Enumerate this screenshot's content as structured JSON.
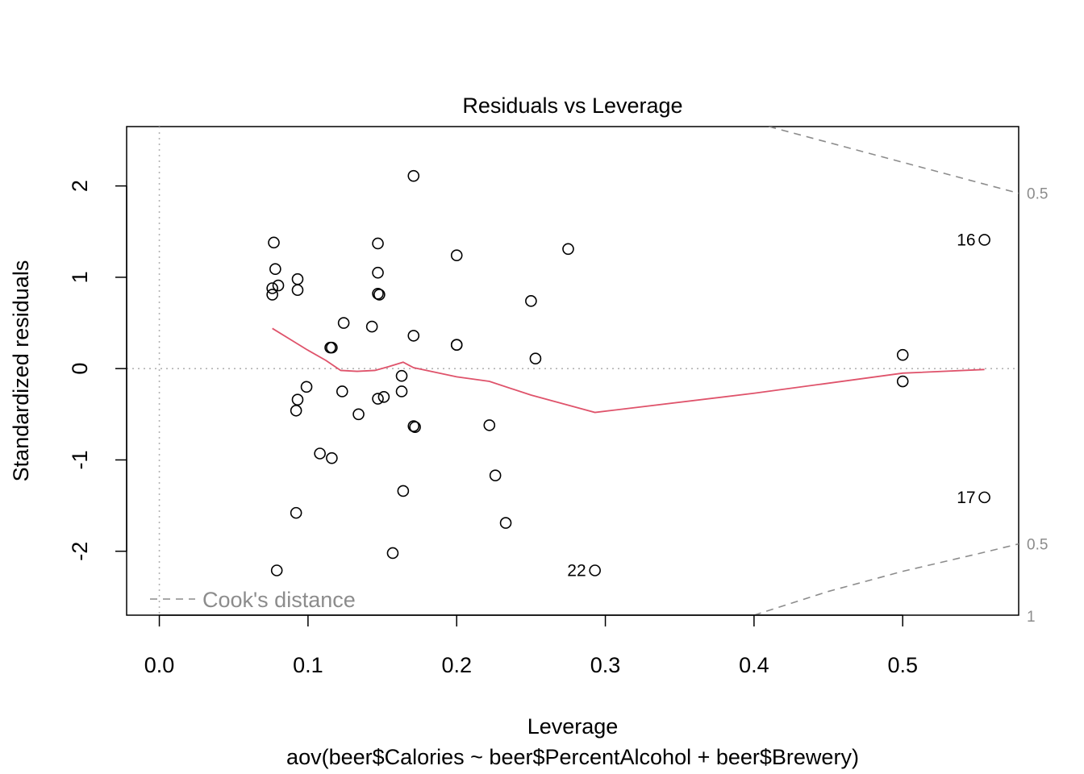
{
  "chart_data": {
    "type": "scatter",
    "title": "Residuals vs Leverage",
    "xlabel": "Leverage",
    "ylabel": "Standardized residuals",
    "subtitle": "aov(beer$Calories ~ beer$PercentAlcohol + beer$Brewery)",
    "xlim": [
      -0.022,
      0.578
    ],
    "ylim": [
      -2.7,
      2.65
    ],
    "x_ticks": [
      "0.0",
      "0.1",
      "0.2",
      "0.3",
      "0.4",
      "0.5"
    ],
    "x_tick_values": [
      0.0,
      0.1,
      0.2,
      0.3,
      0.4,
      0.5
    ],
    "y_ticks": [
      "-2",
      "-1",
      "0",
      "1",
      "2"
    ],
    "y_tick_values": [
      -2,
      -1,
      0,
      1,
      2
    ],
    "points": [
      {
        "x": 0.077,
        "y": 1.38
      },
      {
        "x": 0.078,
        "y": 1.09
      },
      {
        "x": 0.08,
        "y": 0.91
      },
      {
        "x": 0.076,
        "y": 0.88
      },
      {
        "x": 0.076,
        "y": 0.81
      },
      {
        "x": 0.093,
        "y": 0.98
      },
      {
        "x": 0.093,
        "y": 0.86
      },
      {
        "x": 0.079,
        "y": -2.21
      },
      {
        "x": 0.092,
        "y": -1.58
      },
      {
        "x": 0.093,
        "y": -0.34
      },
      {
        "x": 0.092,
        "y": -0.46
      },
      {
        "x": 0.099,
        "y": -0.2
      },
      {
        "x": 0.108,
        "y": -0.93
      },
      {
        "x": 0.116,
        "y": -0.98
      },
      {
        "x": 0.115,
        "y": 0.23
      },
      {
        "x": 0.116,
        "y": 0.23
      },
      {
        "x": 0.124,
        "y": 0.5
      },
      {
        "x": 0.123,
        "y": -0.25
      },
      {
        "x": 0.134,
        "y": -0.5
      },
      {
        "x": 0.143,
        "y": 0.46
      },
      {
        "x": 0.147,
        "y": 1.37
      },
      {
        "x": 0.147,
        "y": 1.05
      },
      {
        "x": 0.147,
        "y": 0.82
      },
      {
        "x": 0.148,
        "y": 0.81
      },
      {
        "x": 0.147,
        "y": -0.33
      },
      {
        "x": 0.151,
        "y": -0.31
      },
      {
        "x": 0.157,
        "y": -2.02
      },
      {
        "x": 0.163,
        "y": -0.08
      },
      {
        "x": 0.163,
        "y": -0.25
      },
      {
        "x": 0.164,
        "y": -1.34
      },
      {
        "x": 0.171,
        "y": 2.11
      },
      {
        "x": 0.171,
        "y": 0.36
      },
      {
        "x": 0.171,
        "y": -0.63
      },
      {
        "x": 0.172,
        "y": -0.64
      },
      {
        "x": 0.2,
        "y": 1.24
      },
      {
        "x": 0.2,
        "y": 0.26
      },
      {
        "x": 0.2,
        "y": 0.26
      },
      {
        "x": 0.222,
        "y": -0.62
      },
      {
        "x": 0.226,
        "y": -1.17
      },
      {
        "x": 0.233,
        "y": -1.69
      },
      {
        "x": 0.25,
        "y": 0.74
      },
      {
        "x": 0.253,
        "y": 0.11
      },
      {
        "x": 0.275,
        "y": 1.31
      },
      {
        "x": 0.293,
        "y": -2.21
      },
      {
        "x": 0.5,
        "y": 0.15
      },
      {
        "x": 0.5,
        "y": -0.14
      },
      {
        "x": 0.555,
        "y": 1.41
      },
      {
        "x": 0.555,
        "y": -1.41
      }
    ],
    "point_labels": [
      {
        "x": 0.555,
        "y": 1.41,
        "label": "16"
      },
      {
        "x": 0.555,
        "y": -1.41,
        "label": "17"
      },
      {
        "x": 0.293,
        "y": -2.21,
        "label": "22"
      }
    ],
    "smoother": {
      "color": "#DF536B",
      "x": [
        0.076,
        0.087,
        0.099,
        0.112,
        0.122,
        0.133,
        0.145,
        0.154,
        0.164,
        0.171,
        0.2,
        0.222,
        0.25,
        0.293,
        0.4,
        0.5,
        0.555
      ],
      "y": [
        0.44,
        0.33,
        0.21,
        0.09,
        -0.02,
        -0.03,
        -0.02,
        0.02,
        0.07,
        0.01,
        -0.09,
        -0.14,
        -0.29,
        -0.48,
        -0.27,
        -0.05,
        -0.01
      ]
    },
    "cooks_distance": {
      "label": "Cook's distance",
      "color": "#8c8c8c",
      "levels": [
        {
          "label": "0.5",
          "upper": [
            [
              0.41,
              2.65
            ],
            [
              0.578,
              1.92
            ]
          ],
          "lower": [
            [
              0.578,
              -1.92
            ]
          ]
        },
        {
          "label": "1",
          "lower": [
            [
              0.4,
              -2.7
            ],
            [
              0.578,
              -2.71
            ]
          ]
        }
      ],
      "contour_labels": [
        {
          "label": "0.5",
          "y": 1.92
        },
        {
          "label": "0.5",
          "y": -1.92
        },
        {
          "label": "1",
          "y": -2.71
        }
      ],
      "lower_half_curve": [
        [
          0.4,
          -2.7
        ],
        [
          0.45,
          -2.44
        ],
        [
          0.5,
          -2.22
        ],
        [
          0.55,
          -2.03
        ],
        [
          0.578,
          -1.92
        ]
      ]
    },
    "reference_lines": {
      "h": 0,
      "v": 0,
      "color": "#b3b3b3",
      "style": "dotted"
    },
    "legend": {
      "position": "bottom-left",
      "entries": [
        "Cook's distance"
      ]
    }
  }
}
